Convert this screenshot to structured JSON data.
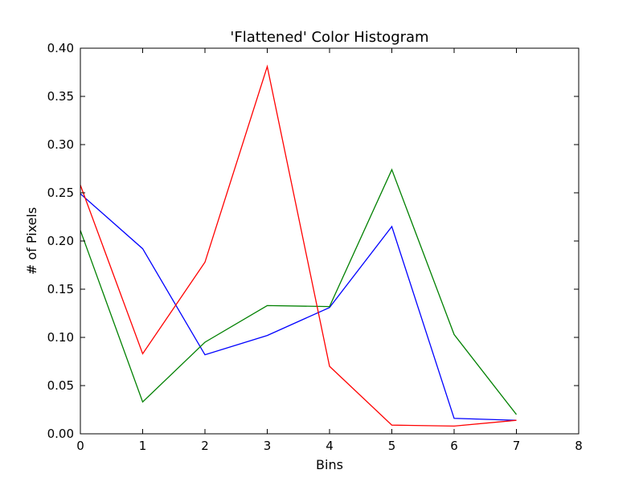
{
  "chart_data": {
    "type": "line",
    "title": "'Flattened' Color Histogram",
    "xlabel": "Bins",
    "ylabel": "# of Pixels",
    "xlim": [
      0,
      8
    ],
    "ylim": [
      0.0,
      0.4
    ],
    "xticks": [
      "0",
      "1",
      "2",
      "3",
      "4",
      "5",
      "6",
      "7",
      "8"
    ],
    "yticks": [
      "0.00",
      "0.05",
      "0.10",
      "0.15",
      "0.20",
      "0.25",
      "0.30",
      "0.35",
      "0.40"
    ],
    "grid": false,
    "x": [
      0,
      1,
      2,
      3,
      4,
      5,
      6,
      7
    ],
    "series": [
      {
        "color": "#0000ff",
        "values": [
          0.249,
          0.192,
          0.082,
          0.102,
          0.131,
          0.215,
          0.016,
          0.014
        ]
      },
      {
        "color": "#008000",
        "values": [
          0.211,
          0.033,
          0.095,
          0.133,
          0.132,
          0.274,
          0.103,
          0.02
        ]
      },
      {
        "color": "#ff0000",
        "values": [
          0.258,
          0.083,
          0.178,
          0.381,
          0.07,
          0.009,
          0.008,
          0.014
        ]
      }
    ]
  }
}
